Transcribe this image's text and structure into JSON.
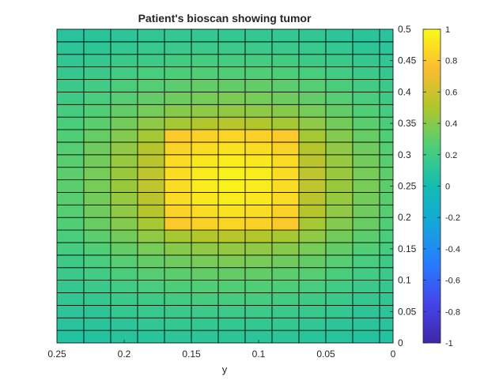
{
  "chart_data": {
    "type": "heatmap",
    "title": "Patient's bioscan showing tumor",
    "xlabel": "y",
    "ylabel": "",
    "xlim": [
      0,
      0.25
    ],
    "x_reversed": true,
    "ylim": [
      0,
      0.5
    ],
    "y_axis_location": "right",
    "xticks": [
      0.25,
      0.2,
      0.15,
      0.1,
      0.05,
      0
    ],
    "xtick_labels": [
      "0.25",
      "0.2",
      "0.15",
      "0.1",
      "0.05",
      "0"
    ],
    "yticks": [
      0,
      0.05,
      0.1,
      0.15,
      0.2,
      0.25,
      0.3,
      0.35,
      0.4,
      0.45,
      0.5
    ],
    "ytick_labels": [
      "0",
      "0.05",
      "0.1",
      "0.15",
      "0.2",
      "0.25",
      "0.3",
      "0.35",
      "0.4",
      "0.45",
      "0.5"
    ],
    "grid": true,
    "colormap": "parula",
    "clim": [
      -1,
      1
    ],
    "colorbar": {
      "location": "right",
      "ticks": [
        1,
        0.8,
        0.6,
        0.4,
        0.2,
        0,
        -0.2,
        -0.4,
        -0.6,
        -0.8,
        -1
      ],
      "tick_labels": [
        "1",
        "0.8",
        "0.6",
        "0.4",
        "0.2",
        "0",
        "-0.2",
        "-0.4",
        "-0.6",
        "-0.8",
        "-1"
      ]
    },
    "x_cell_edges": [
      0.25,
      0.23,
      0.21,
      0.19,
      0.17,
      0.15,
      0.13,
      0.11,
      0.09,
      0.07,
      0.05,
      0.03,
      0.01,
      0
    ],
    "y_cell_edges": [
      0,
      0.02,
      0.04,
      0.06,
      0.08,
      0.1,
      0.12,
      0.14,
      0.16,
      0.18,
      0.2,
      0.22,
      0.24,
      0.26,
      0.28,
      0.3,
      0.32,
      0.34,
      0.36,
      0.38,
      0.4,
      0.42,
      0.44,
      0.46,
      0.48,
      0.5
    ],
    "values": [
      [
        0.07,
        0.08,
        0.09,
        0.1,
        0.11,
        0.11,
        0.12,
        0.11,
        0.11,
        0.1,
        0.09,
        0.08,
        0.07
      ],
      [
        0.09,
        0.1,
        0.11,
        0.13,
        0.14,
        0.14,
        0.14,
        0.14,
        0.14,
        0.13,
        0.11,
        0.1,
        0.09
      ],
      [
        0.11,
        0.12,
        0.14,
        0.16,
        0.17,
        0.18,
        0.18,
        0.18,
        0.17,
        0.16,
        0.14,
        0.12,
        0.11
      ],
      [
        0.13,
        0.15,
        0.17,
        0.19,
        0.21,
        0.22,
        0.22,
        0.22,
        0.21,
        0.19,
        0.17,
        0.15,
        0.13
      ],
      [
        0.15,
        0.17,
        0.2,
        0.23,
        0.25,
        0.26,
        0.26,
        0.26,
        0.25,
        0.23,
        0.2,
        0.17,
        0.15
      ],
      [
        0.17,
        0.2,
        0.24,
        0.27,
        0.29,
        0.31,
        0.31,
        0.31,
        0.29,
        0.27,
        0.24,
        0.2,
        0.17
      ],
      [
        0.19,
        0.23,
        0.27,
        0.31,
        0.34,
        0.36,
        0.37,
        0.36,
        0.34,
        0.31,
        0.27,
        0.23,
        0.19
      ],
      [
        0.22,
        0.26,
        0.31,
        0.36,
        0.4,
        0.42,
        0.43,
        0.42,
        0.4,
        0.36,
        0.31,
        0.26,
        0.22
      ],
      [
        0.24,
        0.29,
        0.35,
        0.42,
        0.48,
        0.51,
        0.53,
        0.51,
        0.48,
        0.42,
        0.35,
        0.29,
        0.24
      ],
      [
        0.26,
        0.32,
        0.39,
        0.48,
        0.8,
        0.83,
        0.85,
        0.83,
        0.8,
        0.48,
        0.39,
        0.32,
        0.26
      ],
      [
        0.27,
        0.34,
        0.42,
        0.52,
        0.84,
        0.88,
        0.9,
        0.88,
        0.84,
        0.52,
        0.42,
        0.34,
        0.27
      ],
      [
        0.28,
        0.35,
        0.44,
        0.54,
        0.87,
        0.92,
        0.94,
        0.92,
        0.87,
        0.54,
        0.44,
        0.35,
        0.28
      ],
      [
        0.29,
        0.36,
        0.45,
        0.55,
        0.88,
        0.94,
        0.96,
        0.94,
        0.88,
        0.55,
        0.45,
        0.36,
        0.29
      ],
      [
        0.29,
        0.36,
        0.45,
        0.55,
        0.88,
        0.94,
        0.96,
        0.94,
        0.88,
        0.55,
        0.45,
        0.36,
        0.29
      ],
      [
        0.28,
        0.35,
        0.44,
        0.54,
        0.87,
        0.92,
        0.94,
        0.92,
        0.87,
        0.54,
        0.44,
        0.35,
        0.28
      ],
      [
        0.27,
        0.34,
        0.42,
        0.52,
        0.84,
        0.88,
        0.9,
        0.88,
        0.84,
        0.52,
        0.42,
        0.34,
        0.27
      ],
      [
        0.26,
        0.32,
        0.39,
        0.48,
        0.8,
        0.83,
        0.85,
        0.83,
        0.8,
        0.48,
        0.39,
        0.32,
        0.26
      ],
      [
        0.24,
        0.29,
        0.35,
        0.42,
        0.48,
        0.51,
        0.53,
        0.51,
        0.48,
        0.42,
        0.35,
        0.29,
        0.24
      ],
      [
        0.22,
        0.26,
        0.31,
        0.36,
        0.4,
        0.42,
        0.43,
        0.42,
        0.4,
        0.36,
        0.31,
        0.26,
        0.22
      ],
      [
        0.19,
        0.23,
        0.27,
        0.31,
        0.34,
        0.36,
        0.37,
        0.36,
        0.34,
        0.31,
        0.27,
        0.23,
        0.19
      ],
      [
        0.17,
        0.2,
        0.24,
        0.27,
        0.29,
        0.31,
        0.31,
        0.31,
        0.29,
        0.27,
        0.24,
        0.2,
        0.17
      ],
      [
        0.15,
        0.17,
        0.2,
        0.23,
        0.25,
        0.26,
        0.26,
        0.26,
        0.25,
        0.23,
        0.2,
        0.17,
        0.15
      ],
      [
        0.13,
        0.15,
        0.17,
        0.19,
        0.21,
        0.22,
        0.22,
        0.22,
        0.21,
        0.19,
        0.17,
        0.15,
        0.13
      ],
      [
        0.11,
        0.12,
        0.14,
        0.16,
        0.17,
        0.18,
        0.18,
        0.18,
        0.17,
        0.16,
        0.14,
        0.12,
        0.11
      ],
      [
        0.09,
        0.1,
        0.11,
        0.13,
        0.14,
        0.14,
        0.14,
        0.14,
        0.14,
        0.13,
        0.11,
        0.1,
        0.09
      ]
    ]
  }
}
